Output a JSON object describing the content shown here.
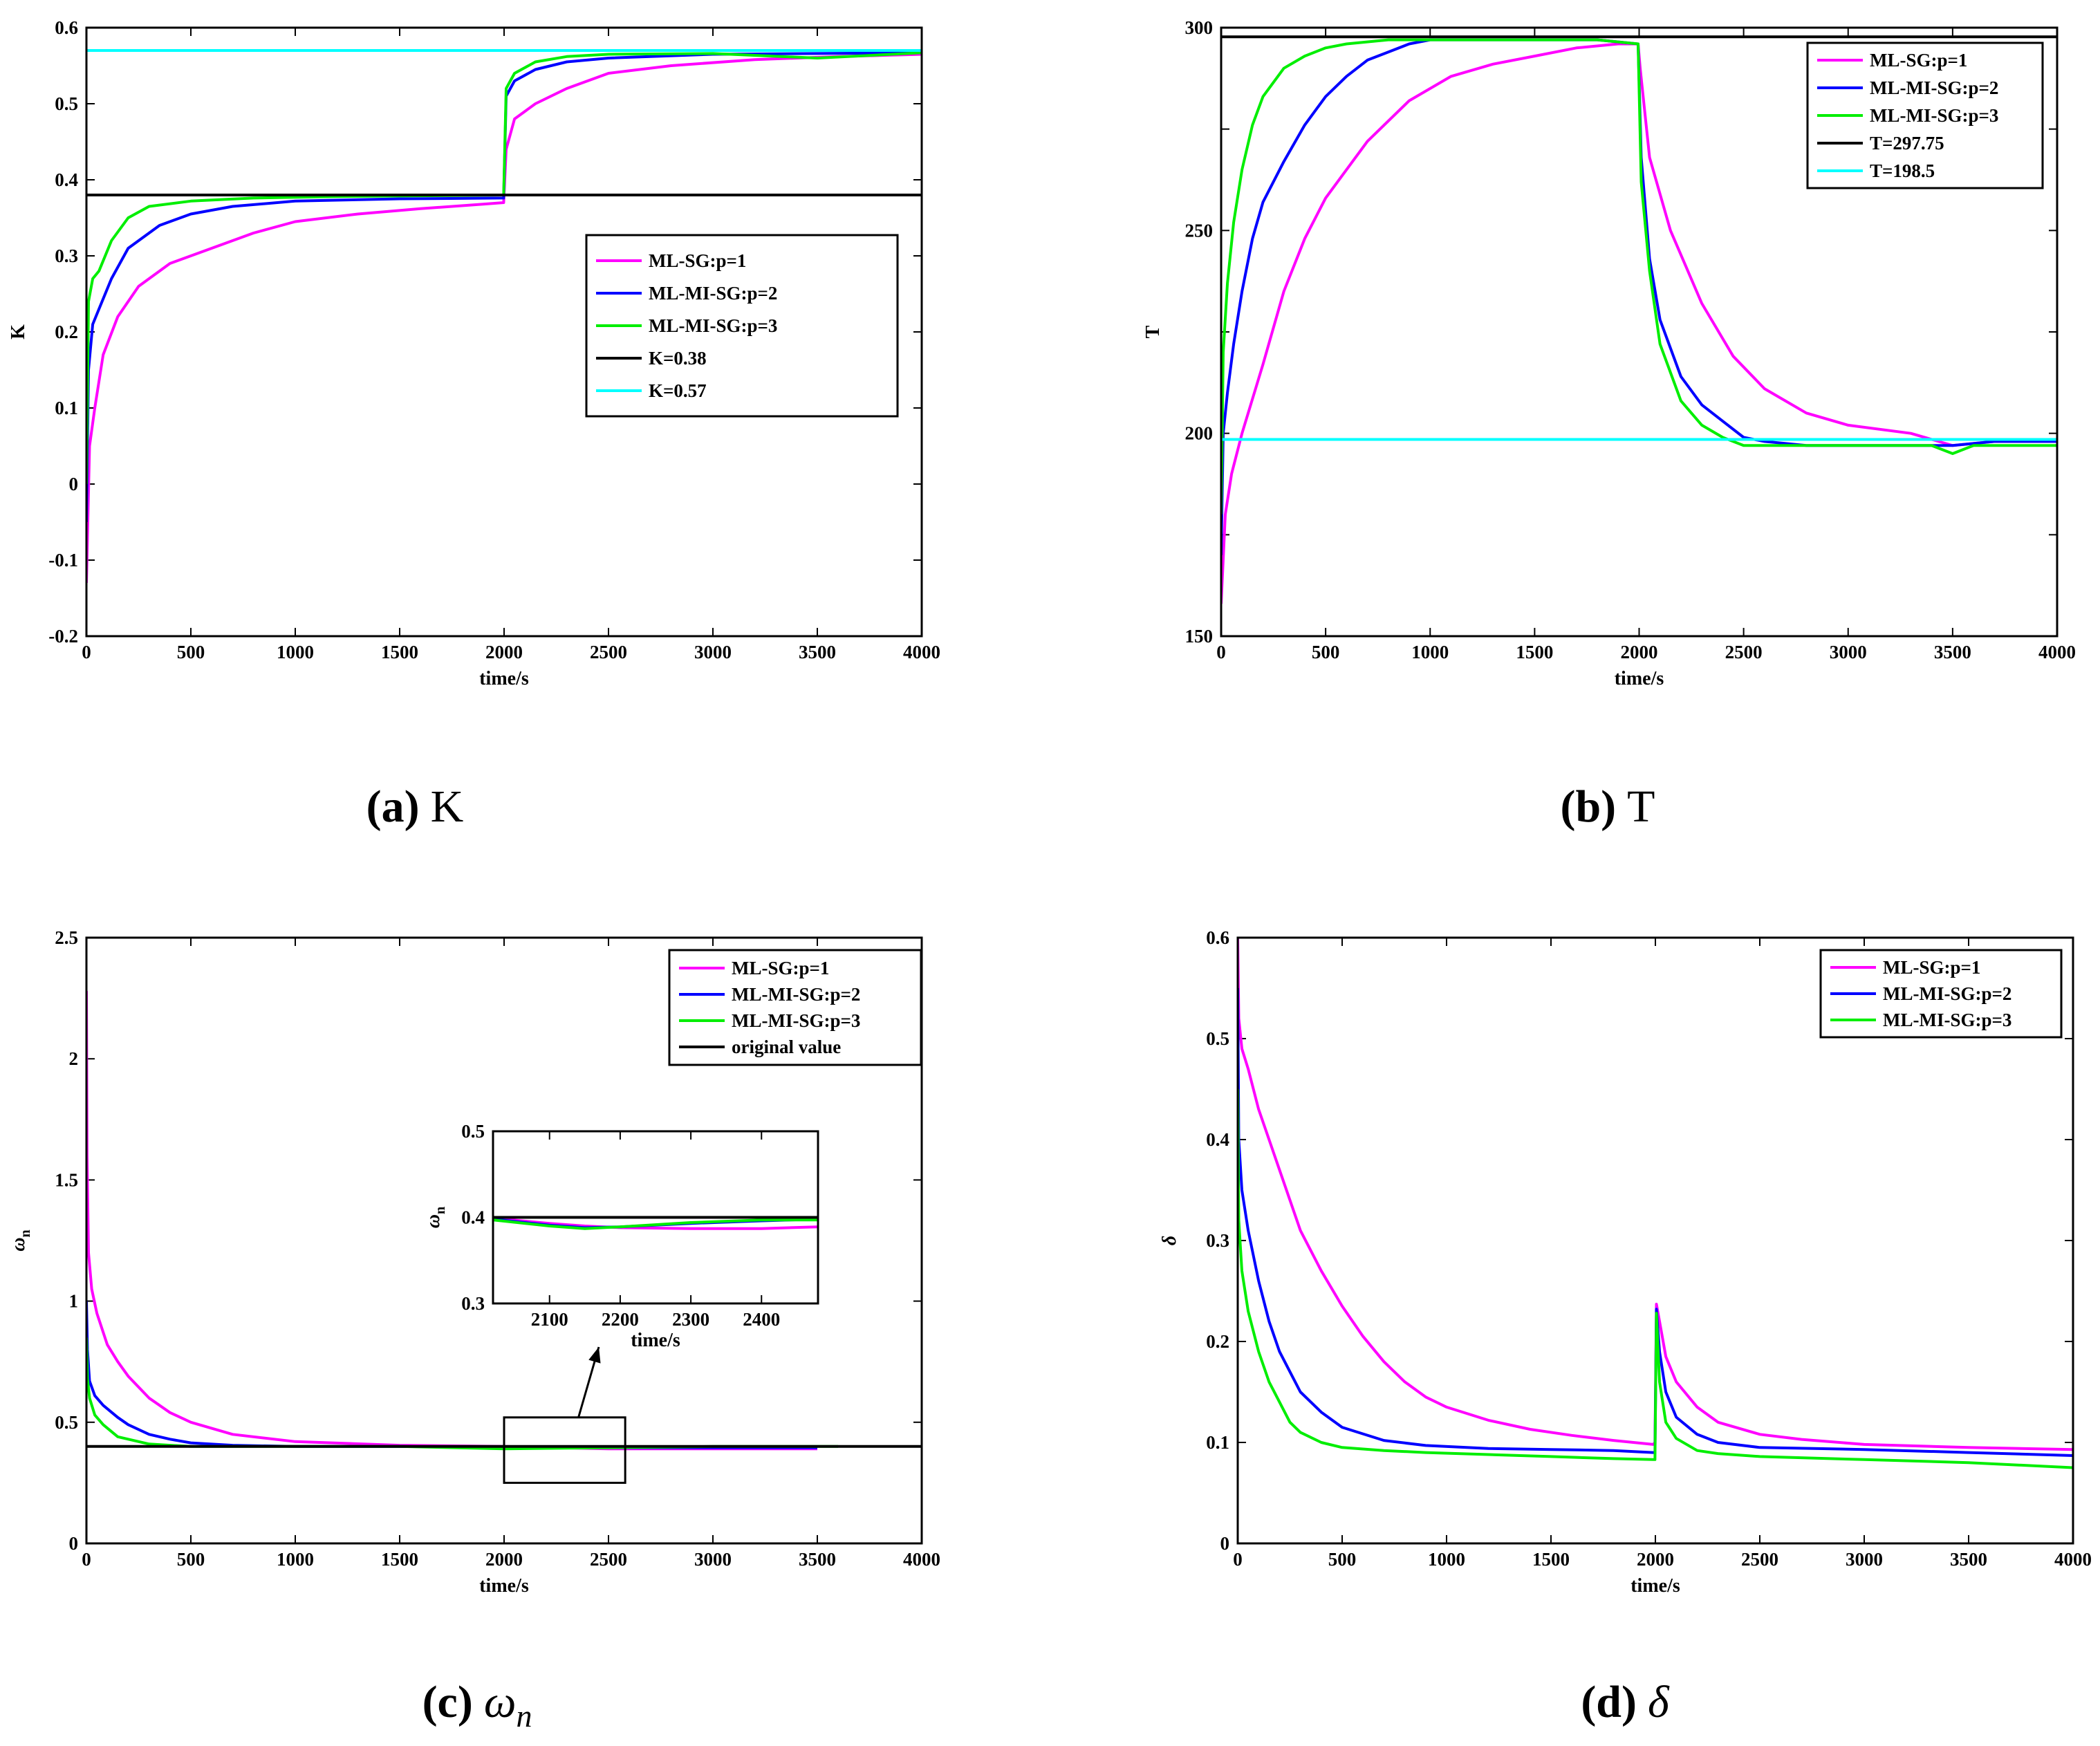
{
  "colors": {
    "p1": "#ff00ff",
    "p2": "#0000ff",
    "p3": "#00ee00",
    "black": "#000000",
    "cyan": "#00ffff"
  },
  "chart_data": [
    {
      "id": "a",
      "type": "line",
      "caption": {
        "letter": "(a)",
        "text": "K"
      },
      "xlabel": "time/s",
      "ylabel": "K",
      "xlim": [
        0,
        4000
      ],
      "ylim": [
        -0.2,
        0.6
      ],
      "xticks": [
        "0",
        "500",
        "1000",
        "1500",
        "2000",
        "2500",
        "3000",
        "3500",
        "4000"
      ],
      "yticks": [
        "-0.2",
        "-0.1",
        "0",
        "0.1",
        "0.2",
        "0.3",
        "0.4",
        "0.5",
        "0.6"
      ],
      "legend_position": "middle-right",
      "series": [
        {
          "name": "ML-SG:p=1",
          "color": "p1",
          "x": [
            0,
            15,
            40,
            80,
            150,
            250,
            400,
            600,
            800,
            1000,
            1300,
            1600,
            1900,
            1998,
            2010,
            2050,
            2150,
            2300,
            2500,
            2800,
            3200,
            3600,
            4000
          ],
          "y": [
            -0.13,
            0.05,
            0.1,
            0.17,
            0.22,
            0.26,
            0.29,
            0.31,
            0.33,
            0.345,
            0.355,
            0.362,
            0.368,
            0.37,
            0.44,
            0.48,
            0.5,
            0.52,
            0.54,
            0.55,
            0.558,
            0.562,
            0.565
          ]
        },
        {
          "name": "ML-MI-SG:p=2",
          "color": "p2",
          "x": [
            0,
            10,
            30,
            60,
            120,
            200,
            350,
            500,
            700,
            1000,
            1500,
            1998,
            2010,
            2050,
            2150,
            2300,
            2500,
            3000,
            4000
          ],
          "y": [
            -0.05,
            0.15,
            0.21,
            0.23,
            0.27,
            0.31,
            0.34,
            0.355,
            0.365,
            0.372,
            0.375,
            0.376,
            0.51,
            0.53,
            0.545,
            0.555,
            0.56,
            0.565,
            0.567
          ]
        },
        {
          "name": "ML-MI-SG:p=3",
          "color": "p3",
          "x": [
            0,
            10,
            30,
            60,
            120,
            200,
            300,
            500,
            800,
            1200,
            1600,
            1998,
            2010,
            2050,
            2150,
            2300,
            2500,
            3000,
            3500,
            4000
          ],
          "y": [
            0.0,
            0.24,
            0.27,
            0.28,
            0.32,
            0.35,
            0.365,
            0.372,
            0.376,
            0.378,
            0.379,
            0.38,
            0.52,
            0.54,
            0.555,
            0.562,
            0.565,
            0.566,
            0.56,
            0.567
          ]
        },
        {
          "name": "K=0.38",
          "color": "black",
          "x": [
            0,
            4000
          ],
          "y": [
            0.38,
            0.38
          ]
        },
        {
          "name": "K=0.57",
          "color": "cyan",
          "x": [
            0,
            4000
          ],
          "y": [
            0.57,
            0.57
          ]
        }
      ]
    },
    {
      "id": "b",
      "type": "line",
      "caption": {
        "letter": "(b)",
        "text": "T"
      },
      "xlabel": "time/s",
      "ylabel": "T",
      "xlim": [
        0,
        4000
      ],
      "ylim": [
        150,
        300
      ],
      "xticks": [
        "0",
        "500",
        "1000",
        "1500",
        "2000",
        "2500",
        "3000",
        "3500",
        "4000"
      ],
      "yticks": [
        "150",
        "",
        "200",
        "",
        "250",
        "",
        "300"
      ],
      "ytick_values": [
        150,
        175,
        200,
        225,
        250,
        275,
        300
      ],
      "legend_position": "top-right",
      "series": [
        {
          "name": "ML-SG:p=1",
          "color": "p1",
          "x": [
            0,
            20,
            50,
            100,
            200,
            300,
            400,
            500,
            700,
            900,
            1100,
            1300,
            1500,
            1700,
            1900,
            1995,
            2005,
            2050,
            2150,
            2300,
            2450,
            2600,
            2800,
            3000,
            3300,
            3500,
            3700,
            4000
          ],
          "y": [
            158,
            180,
            190,
            200,
            217,
            235,
            248,
            258,
            272,
            282,
            288,
            291,
            293,
            295,
            296,
            296,
            290,
            268,
            250,
            232,
            219,
            211,
            205,
            202,
            200,
            197,
            198,
            198
          ]
        },
        {
          "name": "ML-MI-SG:p=2",
          "color": "p2",
          "x": [
            0,
            10,
            30,
            60,
            100,
            150,
            200,
            300,
            400,
            500,
            600,
            700,
            800,
            900,
            1000,
            1200,
            1500,
            1800,
            1995,
            2010,
            2050,
            2100,
            2200,
            2300,
            2400,
            2500,
            2600,
            2800,
            3000,
            3500,
            3700,
            4000
          ],
          "y": [
            170,
            200,
            210,
            222,
            235,
            248,
            257,
            267,
            276,
            283,
            288,
            292,
            294,
            296,
            297,
            297,
            297,
            297,
            296,
            268,
            243,
            228,
            214,
            207,
            203,
            199,
            198,
            197,
            197,
            197,
            198,
            198
          ]
        },
        {
          "name": "ML-MI-SG:p=3",
          "color": "p3",
          "x": [
            0,
            10,
            30,
            60,
            100,
            150,
            200,
            300,
            400,
            500,
            600,
            800,
            1000,
            1200,
            1500,
            1800,
            1995,
            2010,
            2050,
            2100,
            2200,
            2300,
            2400,
            2500,
            2600,
            3000,
            3400,
            3500,
            3600,
            4000
          ],
          "y": [
            180,
            220,
            237,
            252,
            265,
            276,
            283,
            290,
            293,
            295,
            296,
            297,
            297,
            297,
            297,
            297,
            296,
            262,
            240,
            222,
            208,
            202,
            199,
            197,
            197,
            197,
            197,
            195,
            197,
            197
          ]
        },
        {
          "name": "T=297.75",
          "color": "black",
          "x": [
            0,
            4000
          ],
          "y": [
            297.75,
            297.75
          ]
        },
        {
          "name": "T=198.5",
          "color": "cyan",
          "x": [
            0,
            4000
          ],
          "y": [
            198.5,
            198.5
          ]
        }
      ]
    },
    {
      "id": "c",
      "type": "line",
      "caption": {
        "letter": "(c)",
        "text": "ω",
        "sub": "n"
      },
      "xlabel": "time/s",
      "ylabel": "ω",
      "ylabel_sub": "n",
      "xlim": [
        0,
        4000
      ],
      "ylim": [
        0,
        2.5
      ],
      "xticks": [
        "0",
        "500",
        "1000",
        "1500",
        "2000",
        "2500",
        "3000",
        "3500",
        "4000"
      ],
      "yticks": [
        "0",
        "0.5",
        "1",
        "1.5",
        "2",
        "2.5"
      ],
      "legend_position": "top-right",
      "series": [
        {
          "name": "ML-SG:p=1",
          "color": "p1",
          "x": [
            0,
            3,
            10,
            25,
            50,
            100,
            150,
            200,
            300,
            400,
            500,
            700,
            1000,
            1500,
            2000,
            2500,
            3000,
            3500
          ],
          "y": [
            2.28,
            1.6,
            1.2,
            1.05,
            0.95,
            0.82,
            0.75,
            0.69,
            0.6,
            0.54,
            0.5,
            0.45,
            0.42,
            0.405,
            0.4,
            0.39,
            0.39,
            0.39
          ]
        },
        {
          "name": "ML-MI-SG:p=2",
          "color": "p2",
          "x": [
            0,
            5,
            15,
            40,
            80,
            150,
            200,
            300,
            400,
            500,
            700,
            1000,
            1500,
            2000,
            2500,
            3000,
            3500
          ],
          "y": [
            1.0,
            0.8,
            0.67,
            0.61,
            0.57,
            0.52,
            0.49,
            0.45,
            0.43,
            0.415,
            0.405,
            0.4,
            0.4,
            0.395,
            0.395,
            0.395,
            0.395
          ]
        },
        {
          "name": "ML-MI-SG:p=3",
          "color": "p3",
          "x": [
            0,
            5,
            15,
            40,
            80,
            150,
            200,
            300,
            500,
            700,
            1000,
            1500,
            2000,
            2500,
            3000,
            3600
          ],
          "y": [
            0.85,
            0.68,
            0.6,
            0.53,
            0.49,
            0.44,
            0.43,
            0.41,
            0.4,
            0.4,
            0.4,
            0.4,
            0.39,
            0.395,
            0.4,
            0.4
          ]
        },
        {
          "name": "original value",
          "color": "black",
          "x": [
            0,
            4000
          ],
          "y": [
            0.4,
            0.4
          ]
        }
      ],
      "zoom_box": {
        "x": [
          2000,
          2580
        ],
        "y": [
          0.25,
          0.52
        ]
      },
      "inset": {
        "xlabel": "time/s",
        "ylabel": "ω",
        "ylabel_sub": "n",
        "xlim": [
          2020,
          2480
        ],
        "ylim": [
          0.3,
          0.5
        ],
        "xticks": [
          "2100",
          "2200",
          "2300",
          "2400"
        ],
        "yticks": [
          "0.3",
          "0.4",
          "0.5"
        ],
        "series": [
          {
            "name": "ML-SG:p=1",
            "color": "p1",
            "x": [
              2020,
              2100,
              2150,
              2200,
              2300,
              2400,
              2480
            ],
            "y": [
              0.399,
              0.393,
              0.39,
              0.388,
              0.387,
              0.387,
              0.389
            ]
          },
          {
            "name": "ML-MI-SG:p=2",
            "color": "p2",
            "x": [
              2020,
              2100,
              2150,
              2200,
              2300,
              2400,
              2480
            ],
            "y": [
              0.398,
              0.391,
              0.388,
              0.389,
              0.393,
              0.396,
              0.398
            ]
          },
          {
            "name": "ML-MI-SG:p=3",
            "color": "p3",
            "x": [
              2020,
              2100,
              2150,
              2200,
              2300,
              2400,
              2480
            ],
            "y": [
              0.397,
              0.39,
              0.387,
              0.389,
              0.394,
              0.397,
              0.397
            ]
          },
          {
            "name": "original value",
            "color": "black",
            "x": [
              2020,
              2480
            ],
            "y": [
              0.4,
              0.4
            ]
          }
        ]
      }
    },
    {
      "id": "d",
      "type": "line",
      "caption": {
        "letter": "(d)",
        "text": "δ"
      },
      "xlabel": "time/s",
      "ylabel": "δ",
      "xlim": [
        0,
        4000
      ],
      "ylim": [
        0,
        0.6
      ],
      "xticks": [
        "0",
        "500",
        "1000",
        "1500",
        "2000",
        "2500",
        "3000",
        "3500",
        "4000"
      ],
      "yticks": [
        "0",
        "0.1",
        "0.2",
        "0.3",
        "0.4",
        "0.5",
        "0.6"
      ],
      "legend_position": "top-right",
      "series": [
        {
          "name": "ML-SG:p=1",
          "color": "p1",
          "x": [
            0,
            5,
            20,
            50,
            100,
            200,
            300,
            400,
            500,
            600,
            700,
            800,
            900,
            1000,
            1200,
            1400,
            1600,
            1800,
            1990,
            1998,
            2005,
            2020,
            2050,
            2100,
            2200,
            2300,
            2500,
            2700,
            3000,
            3500,
            4000
          ],
          "y": [
            0.6,
            0.52,
            0.49,
            0.47,
            0.43,
            0.37,
            0.31,
            0.27,
            0.235,
            0.205,
            0.18,
            0.16,
            0.145,
            0.135,
            0.122,
            0.113,
            0.107,
            0.102,
            0.098,
            0.1,
            0.237,
            0.22,
            0.185,
            0.16,
            0.135,
            0.12,
            0.108,
            0.103,
            0.098,
            0.095,
            0.093
          ]
        },
        {
          "name": "ML-MI-SG:p=2",
          "color": "p2",
          "x": [
            0,
            5,
            20,
            50,
            100,
            150,
            200,
            250,
            300,
            400,
            500,
            700,
            900,
            1200,
            1500,
            1800,
            1990,
            1998,
            2005,
            2020,
            2050,
            2100,
            2200,
            2300,
            2500,
            3000,
            3500,
            4000
          ],
          "y": [
            0.55,
            0.4,
            0.35,
            0.31,
            0.26,
            0.22,
            0.19,
            0.17,
            0.15,
            0.13,
            0.115,
            0.102,
            0.097,
            0.094,
            0.093,
            0.092,
            0.09,
            0.09,
            0.232,
            0.19,
            0.15,
            0.125,
            0.108,
            0.1,
            0.095,
            0.093,
            0.09,
            0.087
          ]
        },
        {
          "name": "ML-MI-SG:p=3",
          "color": "p3",
          "x": [
            0,
            5,
            20,
            50,
            100,
            150,
            200,
            250,
            300,
            400,
            500,
            700,
            900,
            1200,
            1500,
            1800,
            1990,
            1998,
            2005,
            2020,
            2050,
            2100,
            2200,
            2300,
            2500,
            3000,
            3500,
            4000
          ],
          "y": [
            0.45,
            0.32,
            0.27,
            0.23,
            0.19,
            0.16,
            0.14,
            0.12,
            0.11,
            0.1,
            0.095,
            0.092,
            0.09,
            0.088,
            0.086,
            0.084,
            0.083,
            0.083,
            0.228,
            0.16,
            0.12,
            0.104,
            0.092,
            0.089,
            0.086,
            0.083,
            0.08,
            0.075
          ]
        }
      ]
    }
  ]
}
